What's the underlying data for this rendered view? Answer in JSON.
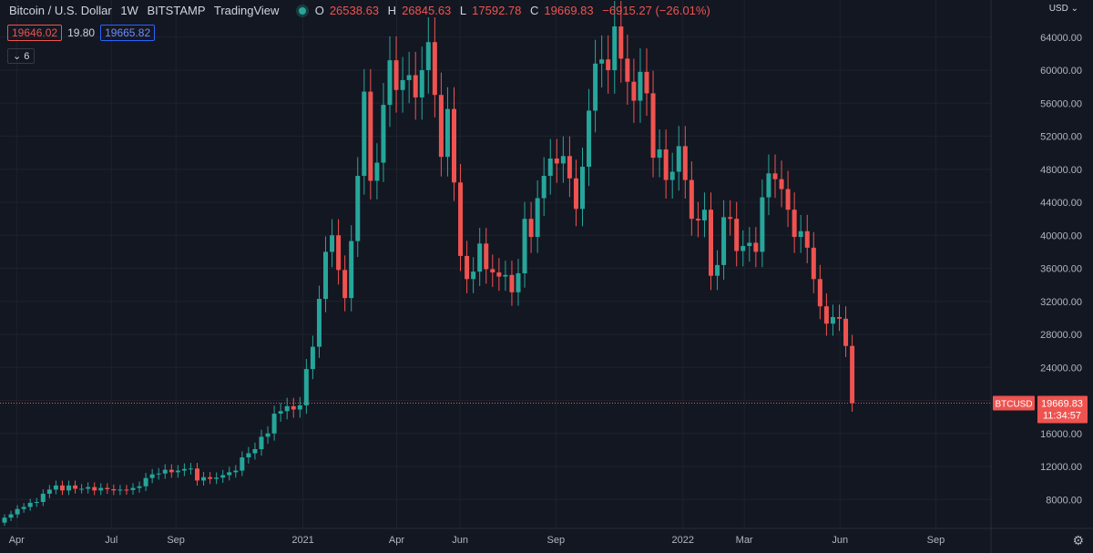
{
  "header": {
    "symbol": "Bitcoin / U.S. Dollar",
    "interval": "1W",
    "exchange": "BITSTAMP",
    "source": "TradingView",
    "o_label": "O",
    "o_value": "26538.63",
    "h_label": "H",
    "h_value": "26845.63",
    "l_label": "L",
    "l_value": "17592.78",
    "c_label": "C",
    "c_value": "19669.83",
    "change": "−6915.27 (−26.01%)",
    "bid": "19646.02",
    "spread": "19.80",
    "ask": "19665.82",
    "indicators_count": "6"
  },
  "currency_label": "USD",
  "colors": {
    "up": "#26a69a",
    "down": "#ef5350",
    "background": "#131722",
    "grid": "#1e222d",
    "axis_text": "#b2b5be"
  },
  "chart_data": {
    "type": "candlestick",
    "title": "Bitcoin / U.S. Dollar · 1W · BITSTAMP",
    "ylim": [
      4500,
      68500
    ],
    "y_ticks": [
      8000,
      12000,
      16000,
      20000,
      24000,
      28000,
      32000,
      36000,
      40000,
      44000,
      48000,
      52000,
      56000,
      60000,
      64000
    ],
    "y_tick_labels": [
      "8000.00",
      "12000.00",
      "16000.00",
      "20000.00",
      "24000.00",
      "28000.00",
      "32000.00",
      "36000.00",
      "40000.00",
      "44000.00",
      "48000.00",
      "52000.00",
      "56000.00",
      "60000.00",
      "64000.00"
    ],
    "x_ticks": [
      {
        "label": "Apr",
        "date": "2020-04-01"
      },
      {
        "label": "Jul",
        "date": "2020-07-01"
      },
      {
        "label": "Sep",
        "date": "2020-09-01"
      },
      {
        "label": "2021",
        "date": "2021-01-01"
      },
      {
        "label": "Apr",
        "date": "2021-04-01"
      },
      {
        "label": "Jun",
        "date": "2021-06-01"
      },
      {
        "label": "Sep",
        "date": "2021-09-01"
      },
      {
        "label": "2022",
        "date": "2022-01-01"
      },
      {
        "label": "Mar",
        "date": "2022-03-01"
      },
      {
        "label": "Jun",
        "date": "2022-06-01"
      },
      {
        "label": "Sep",
        "date": "2022-09-01"
      }
    ],
    "x_range": [
      "2020-03-16",
      "2022-10-24"
    ],
    "last_price": 19669.83,
    "last_price_label": "19669.83",
    "symbol_tag": "BTCUSD",
    "countdown": "11:34:57",
    "closes": [
      5800,
      6200,
      6850,
      7100,
      7600,
      7700,
      8700,
      9200,
      9700,
      9100,
      9700,
      9300,
      9300,
      9500,
      9100,
      9400,
      9250,
      9100,
      9200,
      9150,
      9400,
      9600,
      10600,
      11050,
      11150,
      11600,
      11300,
      11500,
      11700,
      11750,
      10300,
      10700,
      10500,
      10650,
      10950,
      11300,
      11500,
      13100,
      13600,
      14100,
      15600,
      16000,
      18400,
      18700,
      19300,
      18900,
      19400,
      23800,
      26500,
      32300,
      38000,
      40000,
      35800,
      32400,
      39300,
      47200,
      57400,
      46600,
      48800,
      55800,
      61200,
      57600,
      58800,
      59400,
      56700,
      60000,
      63400,
      57000,
      49500,
      55300,
      46400,
      37500,
      34700,
      35600,
      39000,
      35900,
      35500,
      35000,
      35200,
      33100,
      35400,
      42000,
      39800,
      44500,
      47200,
      49300,
      48700,
      49600,
      46900,
      43200,
      48300,
      55100,
      60800,
      61300,
      60000,
      65300,
      61400,
      58600,
      56300,
      59800,
      57200,
      49400,
      50400,
      46700,
      47700,
      50800,
      46700,
      42000,
      41800,
      43100,
      35100,
      36400,
      42200,
      42000,
      38100,
      38700,
      39100,
      38000,
      44600,
      47500,
      46800,
      45600,
      43100,
      39800,
      40500,
      38500,
      34700,
      31400,
      29300,
      30100,
      29900,
      26600,
      19670
    ]
  }
}
